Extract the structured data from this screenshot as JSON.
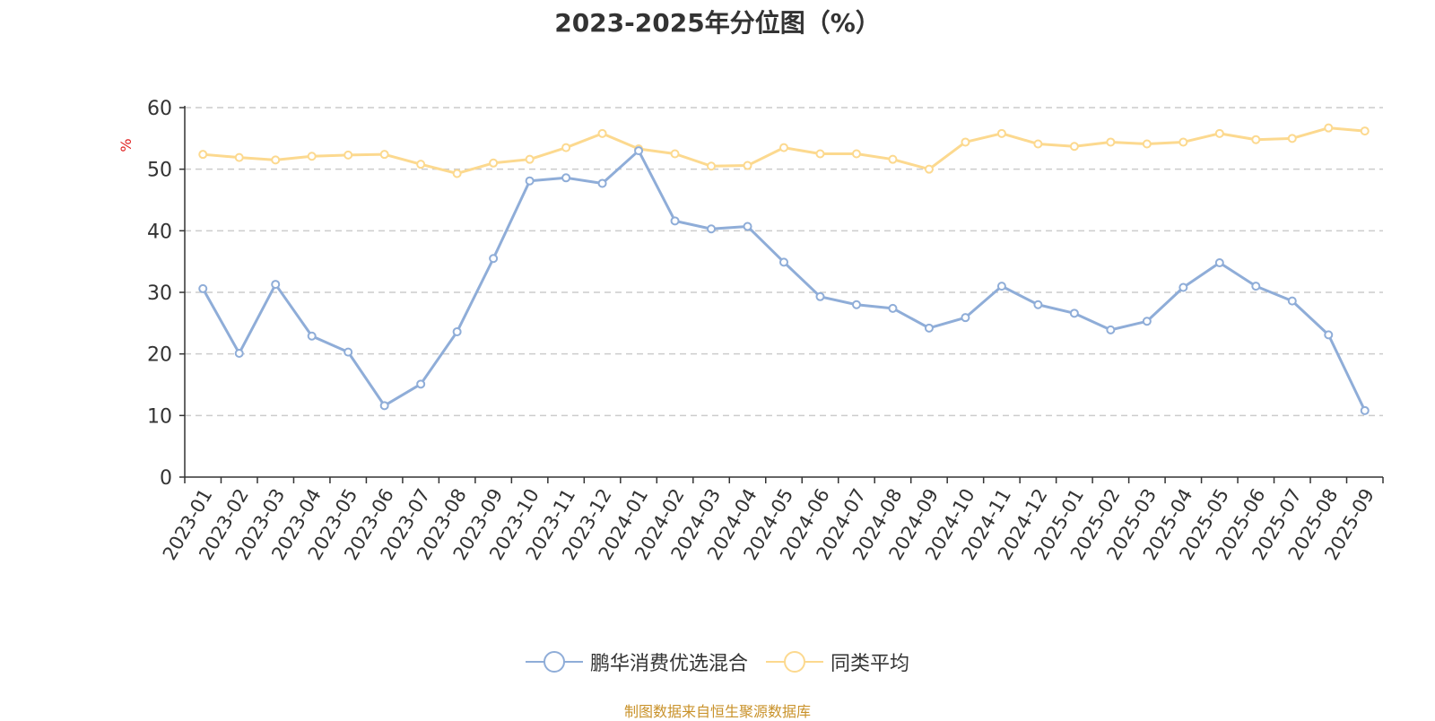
{
  "title": "2023-2025年分位图（%）",
  "source": "制图数据来自恒生聚源数据库",
  "chart_data": {
    "type": "line",
    "title": "2023-2025年分位图（%）",
    "ylabel": "%",
    "ylim": [
      0,
      60
    ],
    "yticks": [
      0,
      10,
      20,
      30,
      40,
      50,
      60
    ],
    "grid": true,
    "legend_position": "bottom",
    "categories": [
      "2023-01",
      "2023-02",
      "2023-03",
      "2023-04",
      "2023-05",
      "2023-06",
      "2023-07",
      "2023-08",
      "2023-09",
      "2023-10",
      "2023-11",
      "2023-12",
      "2024-01",
      "2024-02",
      "2024-03",
      "2024-04",
      "2024-05",
      "2024-06",
      "2024-07",
      "2024-08",
      "2024-09",
      "2024-10",
      "2024-11",
      "2024-12",
      "2025-01",
      "2025-02",
      "2025-03",
      "2025-04",
      "2025-05",
      "2025-06",
      "2025-07",
      "2025-08",
      "2025-09"
    ],
    "series": [
      {
        "name": "鹏华消费优选混合",
        "color": "#8fadd8",
        "values": [
          30.6,
          20.1,
          31.3,
          22.9,
          20.3,
          11.6,
          15.1,
          23.6,
          35.5,
          48.1,
          48.6,
          47.7,
          53.0,
          41.6,
          40.3,
          40.7,
          34.9,
          29.3,
          28.0,
          27.4,
          24.2,
          25.9,
          31.0,
          28.0,
          26.6,
          23.9,
          25.3,
          30.8,
          34.8,
          31.0,
          28.6,
          23.1,
          10.8
        ]
      },
      {
        "name": "同类平均",
        "color": "#fcd98f",
        "values": [
          52.4,
          51.9,
          51.5,
          52.1,
          52.3,
          52.4,
          50.8,
          49.3,
          51.0,
          51.6,
          53.5,
          55.8,
          53.3,
          52.5,
          50.5,
          50.6,
          53.5,
          52.5,
          52.5,
          51.6,
          50.0,
          54.4,
          55.8,
          54.1,
          53.7,
          54.4,
          54.1,
          54.4,
          55.8,
          54.8,
          55.0,
          56.7,
          56.2
        ]
      }
    ]
  }
}
